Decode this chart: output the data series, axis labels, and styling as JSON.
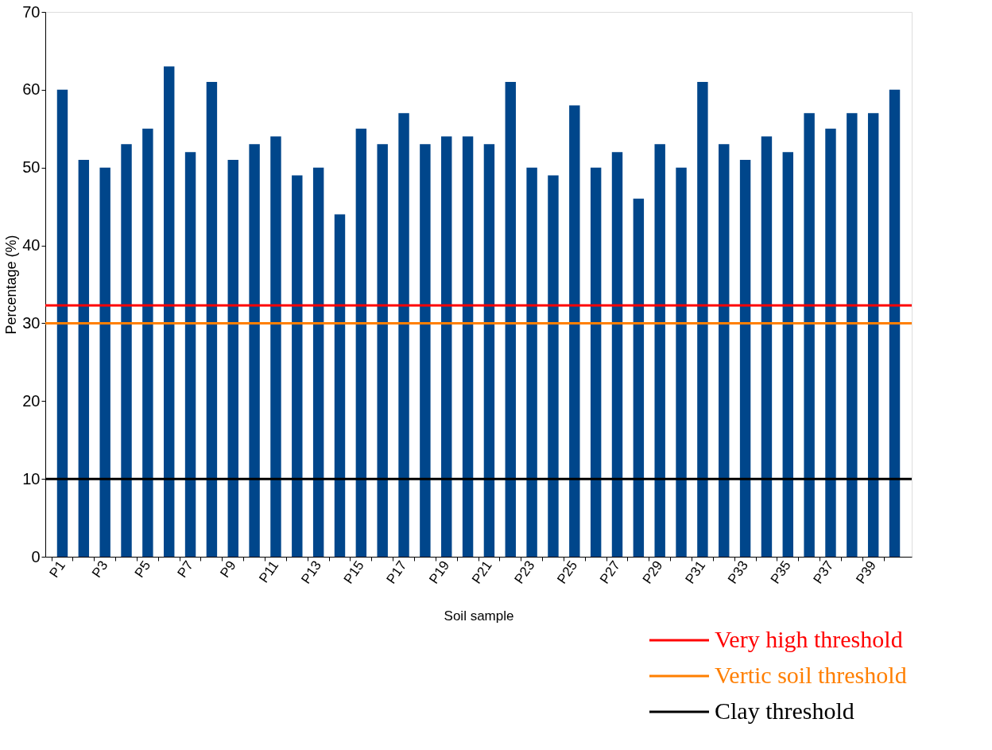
{
  "chart_data": {
    "type": "bar",
    "xlabel": "Soil sample",
    "ylabel": "Percentage (%)",
    "categories": [
      "P1",
      null,
      "P3",
      null,
      "P5",
      null,
      "P7",
      null,
      "P9",
      null,
      "P11",
      null,
      "P13",
      null,
      "P15",
      null,
      "P17",
      null,
      "P19",
      null,
      "P21",
      null,
      "P23",
      null,
      "P25",
      null,
      "P27",
      null,
      "P29",
      null,
      "P31",
      null,
      "P33",
      null,
      "P35",
      null,
      "P37",
      null,
      "P39",
      null
    ],
    "values": [
      60,
      51,
      50,
      53,
      55,
      63,
      52,
      61,
      51,
      53,
      54,
      49,
      50,
      44,
      55,
      53,
      57,
      53,
      54,
      54,
      53,
      61,
      50,
      49,
      58,
      50,
      52,
      46,
      53,
      50,
      61,
      53,
      51,
      54,
      52,
      57,
      55,
      57,
      57,
      60
    ],
    "color": "#00468b",
    "ylim": [
      0,
      70
    ],
    "yticks": [
      0,
      10,
      20,
      30,
      40,
      50,
      60,
      70
    ],
    "grid": false,
    "ref_lines": [
      {
        "axis": "y",
        "value": 32.3,
        "label": "Very high threshold",
        "color": "#ff0000"
      },
      {
        "axis": "y",
        "value": 30,
        "label": "Vertic soil threshold",
        "color": "#ff7f00"
      },
      {
        "axis": "y",
        "value": 10,
        "label": "Clay threshold",
        "color": "#000000"
      }
    ],
    "legend": "bottom right"
  }
}
